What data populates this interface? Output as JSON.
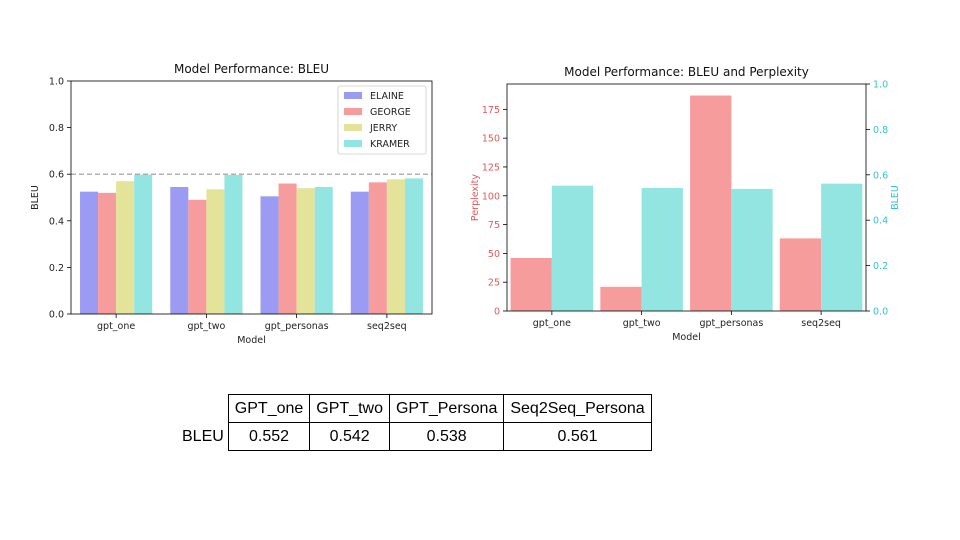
{
  "chart_data": [
    {
      "type": "bar",
      "title": "Model Performance: BLEU",
      "xlabel": "Model",
      "ylabel": "BLEU",
      "categories": [
        "gpt_one",
        "gpt_two",
        "gpt_personas",
        "seq2seq"
      ],
      "ylim": [
        0,
        1.0
      ],
      "yticks": [
        "0.0",
        "0.2",
        "0.4",
        "0.6",
        "0.8",
        "1.0"
      ],
      "reference_line": 0.6,
      "legend_position": "top-right",
      "series": [
        {
          "name": "ELAINE",
          "color": "#9b9bf4",
          "values": [
            0.525,
            0.545,
            0.505,
            0.525
          ]
        },
        {
          "name": "GEORGE",
          "color": "#f79c9c",
          "values": [
            0.52,
            0.49,
            0.56,
            0.565
          ]
        },
        {
          "name": "JERRY",
          "color": "#e3e39a",
          "values": [
            0.57,
            0.535,
            0.54,
            0.578
          ]
        },
        {
          "name": "KRAMER",
          "color": "#93e5e2",
          "values": [
            0.598,
            0.597,
            0.545,
            0.582
          ]
        }
      ]
    },
    {
      "type": "bar",
      "title": "Model Performance: BLEU and Perplexity",
      "xlabel": "Model",
      "ylabel_left": "Perplexity",
      "ylabel_right": "BLEU",
      "categories": [
        "gpt_one",
        "gpt_two",
        "gpt_personas",
        "seq2seq"
      ],
      "ylim_left": [
        0,
        197
      ],
      "ylim_right": [
        0,
        1.0
      ],
      "yticks_left": [
        "0",
        "25",
        "50",
        "75",
        "100",
        "125",
        "150",
        "175"
      ],
      "yticks_right": [
        "0.0",
        "0.2",
        "0.4",
        "0.6",
        "0.8",
        "1.0"
      ],
      "left_color": "#e05a5a",
      "right_color": "#33c3d6",
      "series": [
        {
          "name": "Perplexity",
          "axis": "left",
          "color": "#f79c9c",
          "values": [
            46,
            21,
            187,
            63
          ]
        },
        {
          "name": "BLEU",
          "axis": "right",
          "color": "#93e5e2",
          "values": [
            0.552,
            0.542,
            0.538,
            0.561
          ]
        }
      ]
    }
  ],
  "table": {
    "row_label": "BLEU",
    "headers": [
      "GPT_one",
      "GPT_two",
      "GPT_Persona",
      "Seq2Seq_Persona"
    ],
    "values": [
      "0.552",
      "0.542",
      "0.538",
      "0.561"
    ]
  }
}
